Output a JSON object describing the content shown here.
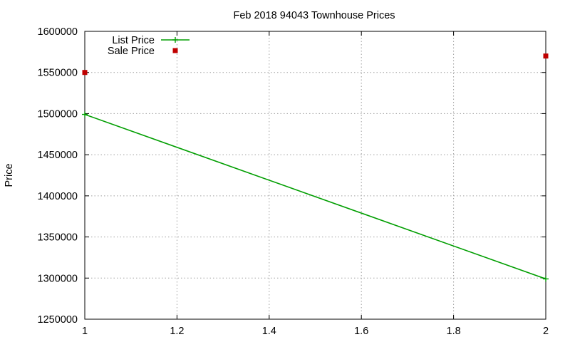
{
  "chart_data": {
    "type": "line",
    "title": "Feb 2018 94043 Townhouse Prices",
    "xlabel": "",
    "ylabel": "Price",
    "xlim": [
      1,
      2
    ],
    "ylim": [
      1250000,
      1600000
    ],
    "x_ticks": [
      "1",
      "1.2",
      "1.4",
      "1.6",
      "1.8",
      "2"
    ],
    "y_ticks": [
      "1250000",
      "1300000",
      "1350000",
      "1400000",
      "1450000",
      "1500000",
      "1550000",
      "1600000"
    ],
    "grid": true,
    "legend_position": "top-left",
    "series": [
      {
        "name": "List Price",
        "style": "linespoints",
        "marker": "plus",
        "color": "#009e00",
        "x": [
          1,
          2
        ],
        "y": [
          1499000,
          1299000
        ]
      },
      {
        "name": "Sale Price",
        "style": "points",
        "marker": "square",
        "color": "#c00000",
        "x": [
          1,
          2
        ],
        "y": [
          1550000,
          1570000
        ]
      }
    ]
  }
}
